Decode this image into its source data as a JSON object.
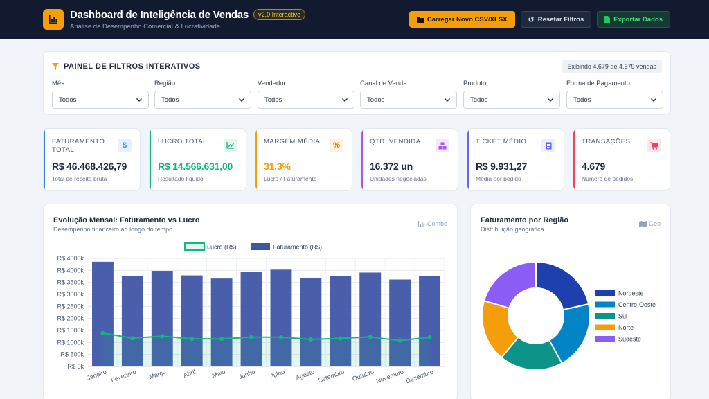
{
  "header": {
    "title": "Dashboard de Inteligência de Vendas",
    "version": "v2.0 Interactive",
    "subtitle": "Análise de Desempenho Comercial & Lucratividade",
    "upload_label": "Carregar Novo CSV/XLSX",
    "reset_label": "Resetar Filtros",
    "export_label": "Exportar Dados"
  },
  "filters": {
    "title": "PAINEL DE FILTROS INTERATIVOS",
    "count": "Exibindo 4.679 de 4.679 vendas",
    "items": [
      {
        "label": "Mês",
        "value": "Todos"
      },
      {
        "label": "Região",
        "value": "Todos"
      },
      {
        "label": "Vendedor",
        "value": "Todos"
      },
      {
        "label": "Canal de Venda",
        "value": "Todos"
      },
      {
        "label": "Produto",
        "value": "Todos"
      },
      {
        "label": "Forma de Pagamento",
        "value": "Todos"
      }
    ]
  },
  "kpis": [
    {
      "label": "FATURAMENTO TOTAL",
      "value": "R$ 46.468.426,79",
      "sub": "Total de receita bruta",
      "icon": "dollar-icon",
      "color": "#3b82f6",
      "value_color": "#1e293b",
      "icon_bg": "#e8f0fe"
    },
    {
      "label": "LUCRO TOTAL",
      "value": "R$ 14.566.631,00",
      "sub": "Resultado líquido",
      "icon": "trend-chart-icon",
      "color": "#10b981",
      "value_color": "#10b981",
      "icon_bg": "#e3f7ef"
    },
    {
      "label": "MARGEM MÉDIA",
      "value": "31.3%",
      "sub": "Lucro / Faturamento",
      "icon": "percent-icon",
      "color": "#f59e0b",
      "value_color": "#f59e0b",
      "icon_bg": "#fef3dc"
    },
    {
      "label": "QTD. VENDIDA",
      "value": "16.372 un",
      "sub": "Unidades negociadas",
      "icon": "boxes-icon",
      "color": "#a855f7",
      "value_color": "#1e293b",
      "icon_bg": "#f3e8fe"
    },
    {
      "label": "TICKET MÉDIO",
      "value": "R$ 9.931,27",
      "sub": "Média por pedido",
      "icon": "receipt-icon",
      "color": "#6366f1",
      "value_color": "#1e293b",
      "icon_bg": "#eceefe"
    },
    {
      "label": "TRANSAÇÕES",
      "value": "4.679",
      "sub": "Número de pedidos",
      "icon": "cart-icon",
      "color": "#f43f5e",
      "value_color": "#1e293b",
      "icon_bg": "#fde7ea"
    }
  ],
  "monthly_chart": {
    "title": "Evolução Mensal: Faturamento vs Lucro",
    "subtitle": "Desempenho financeiro ao longo do tempo",
    "tag": "Combo"
  },
  "region_chart": {
    "title": "Faturamento por Região",
    "subtitle": "Distribuição geográfica",
    "tag": "Geo"
  },
  "chart_data": [
    {
      "type": "bar",
      "title": "Evolução Mensal: Faturamento vs Lucro",
      "categories": [
        "Janeiro",
        "Fevereiro",
        "Março",
        "Abril",
        "Maio",
        "Junho",
        "Julho",
        "Agosto",
        "Setembro",
        "Outubro",
        "Novembro",
        "Dezembro"
      ],
      "series": [
        {
          "name": "Lucro (R$)",
          "kind": "line",
          "color": "#10b981",
          "values": [
            1390,
            1180,
            1260,
            1150,
            1150,
            1220,
            1220,
            1130,
            1170,
            1230,
            1080,
            1220
          ]
        },
        {
          "name": "Faturamento (R$)",
          "kind": "bar",
          "color": "#3f56a6",
          "values": [
            4360,
            3770,
            3980,
            3790,
            3660,
            3950,
            4030,
            3690,
            3770,
            3910,
            3620,
            3760
          ]
        }
      ],
      "yticks": [
        "R$ 0k",
        "R$ 500k",
        "R$ 1000k",
        "R$ 1500k",
        "R$ 2000k",
        "R$ 2500k",
        "R$ 3000k",
        "R$ 3500k",
        "R$ 4000k",
        "R$ 4500k"
      ],
      "ylim": [
        0,
        4500
      ],
      "grid": true,
      "legend": "top"
    },
    {
      "type": "pie",
      "title": "Faturamento por Região",
      "categories": [
        "Nordeste",
        "Centro-Oeste",
        "Sul",
        "Norte",
        "Sudeste"
      ],
      "values": [
        21.5,
        20.5,
        19,
        18.5,
        20.5
      ],
      "colors": [
        "#1e40af",
        "#0284c7",
        "#0d9488",
        "#f59e0b",
        "#8b5cf6"
      ],
      "legend": "right"
    }
  ]
}
